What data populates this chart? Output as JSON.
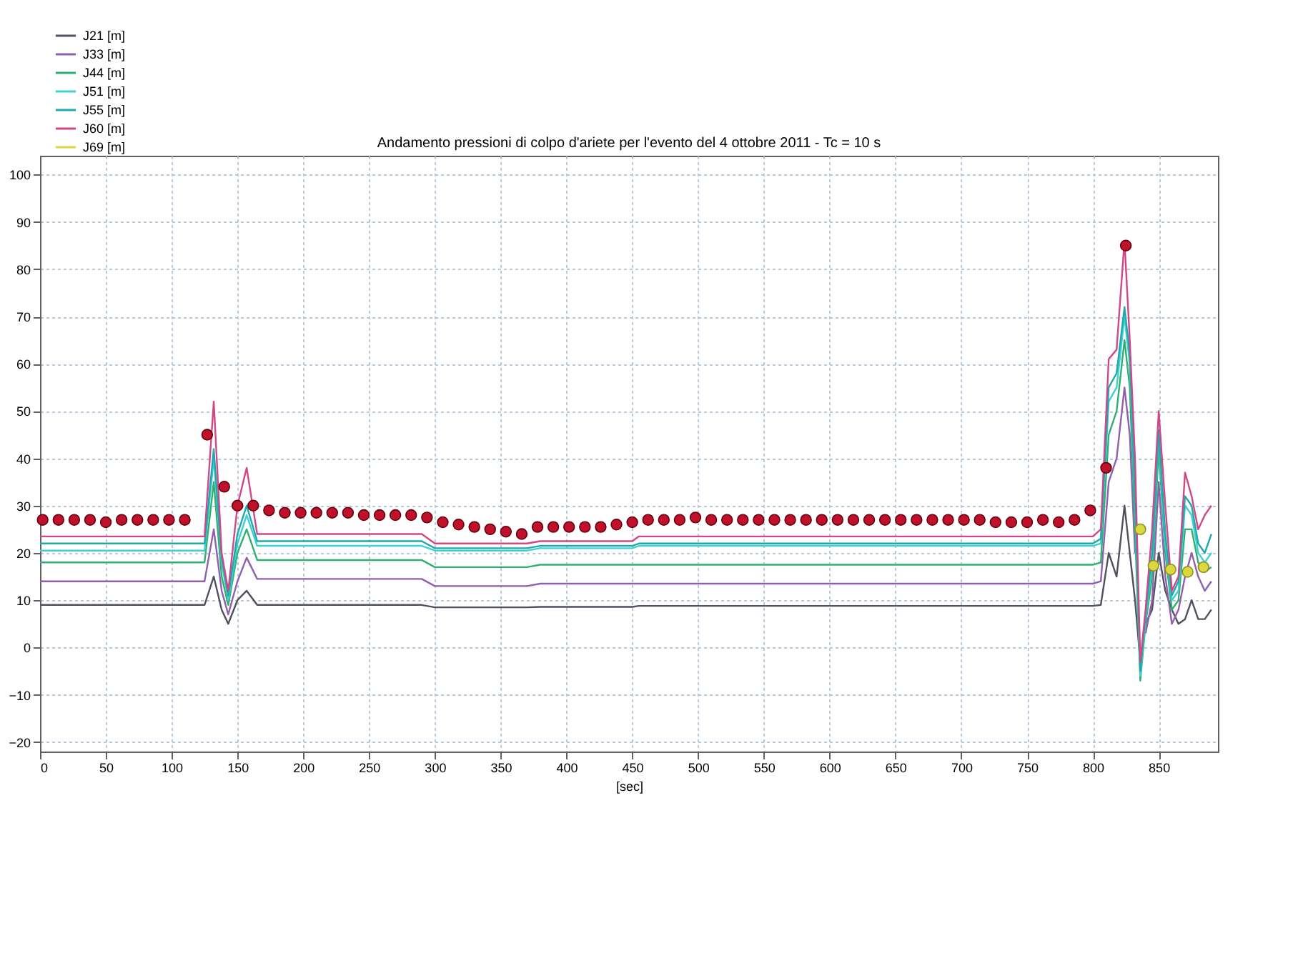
{
  "chart_data": {
    "type": "line",
    "title": "Andamento pressioni di colpo d'ariete per l'evento del 4 ottobre 2011 - Tc = 10 s",
    "xlabel": "[sec]",
    "x": [
      0,
      120,
      125,
      132,
      138,
      143,
      150,
      157,
      165,
      290,
      300,
      370,
      380,
      450,
      455,
      800,
      806,
      812,
      818,
      824,
      828,
      832,
      836,
      840,
      845,
      850,
      855,
      860,
      865,
      870,
      875,
      880,
      885,
      890
    ],
    "xlim": [
      0,
      895
    ],
    "xticks": [
      0,
      50,
      100,
      150,
      200,
      250,
      300,
      350,
      400,
      450,
      500,
      550,
      600,
      650,
      700,
      750,
      800,
      850
    ],
    "ylim": [
      -22,
      104
    ],
    "yticks": [
      -20,
      -10,
      0,
      10,
      20,
      30,
      40,
      50,
      60,
      70,
      80,
      90,
      100
    ],
    "grid": true,
    "legend": "top left",
    "line_style": "solid",
    "marker": "none",
    "series": [
      {
        "name": "J21 [m]",
        "color": "#505060",
        "values": [
          9,
          9,
          9,
          15,
          8,
          5,
          10,
          12,
          9,
          9,
          8.5,
          8.5,
          8.6,
          8.6,
          8.8,
          8.8,
          9,
          20,
          15,
          30,
          20,
          10,
          -3,
          5,
          8,
          20,
          12,
          8,
          5,
          6,
          10,
          6,
          6,
          8
        ]
      },
      {
        "name": "J33 [m]",
        "color": "#9060b0",
        "values": [
          14,
          14,
          14,
          25,
          12,
          7,
          14,
          19,
          14.5,
          14.5,
          13,
          13,
          13.5,
          13.5,
          13.5,
          13.5,
          14,
          35,
          40,
          55,
          45,
          20,
          null,
          3,
          10,
          35,
          15,
          5,
          8,
          15,
          20,
          15,
          12,
          14
        ]
      },
      {
        "name": "J44 [m]",
        "color": "#30b070",
        "values": [
          18,
          18,
          18,
          35,
          15,
          9,
          20,
          25,
          18.5,
          18.5,
          17,
          17,
          17.5,
          17.5,
          17.5,
          17.5,
          18,
          45,
          50,
          65,
          55,
          25,
          -7,
          5,
          15,
          42,
          20,
          8,
          10,
          25,
          25,
          18,
          16,
          17
        ]
      },
      {
        "name": "J51 [m]",
        "color": "#40d0d0",
        "values": [
          20.5,
          20.5,
          20.5,
          40,
          18,
          10,
          22,
          28,
          21.5,
          21.5,
          20.5,
          20.5,
          21,
          21,
          21.5,
          21.5,
          22,
          52,
          55,
          70,
          60,
          30,
          -6,
          6,
          18,
          45,
          22,
          10,
          12,
          30,
          28,
          20,
          18,
          20
        ]
      },
      {
        "name": "J55 [m]",
        "color": "#20a8b0",
        "values": [
          22,
          22,
          22,
          42,
          19,
          11,
          24,
          30,
          22.5,
          22.5,
          21,
          21,
          21.5,
          21.5,
          22,
          22,
          23,
          55,
          58,
          72,
          62,
          32,
          -5,
          7,
          20,
          46,
          24,
          11,
          14,
          32,
          30,
          22,
          20,
          24
        ]
      },
      {
        "name": "J60 [m]",
        "color": "#d04888",
        "values": [
          23.5,
          23.5,
          23.5,
          52,
          20,
          12,
          30,
          38,
          24,
          24,
          22,
          22,
          22.5,
          22.5,
          23.5,
          23.5,
          25,
          61,
          63,
          86,
          65,
          40,
          -3,
          8,
          25,
          50,
          30,
          12,
          15,
          37,
          32,
          25,
          28,
          30
        ]
      },
      {
        "name": "J69 [m]",
        "type": "scatter",
        "marker": "circle",
        "color": "#d8d840",
        "x": [
          836,
          846,
          859,
          872,
          884
        ],
        "values": [
          25,
          17.3,
          16.5,
          16,
          17
        ]
      },
      {
        "type": "scatter",
        "marker": "circle",
        "color": "#c0102a",
        "x": [
          2,
          14,
          26,
          38,
          50,
          62,
          74,
          86,
          98,
          110,
          127,
          140,
          150,
          162,
          174,
          186,
          198,
          210,
          222,
          234,
          246,
          258,
          270,
          282,
          294,
          306,
          318,
          330,
          342,
          354,
          366,
          378,
          390,
          402,
          414,
          426,
          438,
          450,
          462,
          474,
          486,
          498,
          510,
          522,
          534,
          546,
          558,
          570,
          582,
          594,
          606,
          618,
          630,
          642,
          654,
          666,
          678,
          690,
          702,
          714,
          726,
          738,
          750,
          762,
          774,
          786,
          798,
          810,
          825
        ],
        "values": [
          27,
          27,
          27,
          27,
          26.5,
          27,
          27,
          27,
          27,
          27,
          45,
          34,
          30,
          30,
          29,
          28.5,
          28.5,
          28.5,
          28.5,
          28.5,
          28,
          28,
          28,
          28,
          27.5,
          26.5,
          26,
          25.5,
          25,
          24.5,
          24,
          25.5,
          25.5,
          25.5,
          25.5,
          25.5,
          26,
          26.5,
          27,
          27,
          27,
          27.5,
          27,
          27,
          27,
          27,
          27,
          27,
          27,
          27,
          27,
          27,
          27,
          27,
          27,
          27,
          27,
          27,
          27,
          27,
          26.5,
          26.5,
          26.5,
          27,
          26.5,
          27,
          29,
          38,
          85
        ]
      }
    ]
  }
}
